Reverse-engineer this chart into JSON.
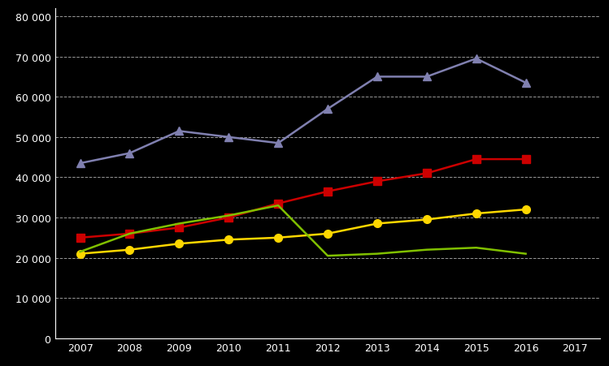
{
  "years": [
    2007,
    2008,
    2009,
    2010,
    2011,
    2012,
    2013,
    2014,
    2015,
    2016
  ],
  "series": [
    {
      "name": "blue_triangle",
      "color": "#8080B0",
      "marker": "^",
      "values": [
        43500,
        46000,
        51500,
        50000,
        48500,
        57000,
        65000,
        65000,
        69500,
        63500
      ]
    },
    {
      "name": "red_square",
      "color": "#CC0000",
      "marker": "s",
      "values": [
        25000,
        26000,
        27500,
        30000,
        33500,
        36500,
        39000,
        41000,
        44500,
        44500
      ]
    },
    {
      "name": "yellow_circle",
      "color": "#FFD700",
      "marker": "o",
      "values": [
        21000,
        22000,
        23500,
        24500,
        25000,
        26000,
        28500,
        29500,
        31000,
        32000
      ]
    },
    {
      "name": "green_line",
      "color": "#80C000",
      "marker": null,
      "values": [
        21500,
        26000,
        28500,
        30500,
        33000,
        20500,
        21000,
        22000,
        22500,
        21000
      ]
    }
  ],
  "xlim": [
    2006.5,
    2017.5
  ],
  "ylim": [
    0,
    82000
  ],
  "yticks": [
    0,
    10000,
    20000,
    30000,
    40000,
    50000,
    60000,
    70000,
    80000
  ],
  "ytick_labels": [
    "0",
    "10 000",
    "20 000",
    "30 000",
    "40 000",
    "50 000",
    "60 000",
    "70 000",
    "80 000"
  ],
  "xticks": [
    2007,
    2008,
    2009,
    2010,
    2011,
    2012,
    2013,
    2014,
    2015,
    2016,
    2017
  ],
  "background_color": "#000000",
  "grid_color": "#ffffff",
  "tick_color": "#ffffff",
  "linewidth": 1.8,
  "markersize": 7
}
